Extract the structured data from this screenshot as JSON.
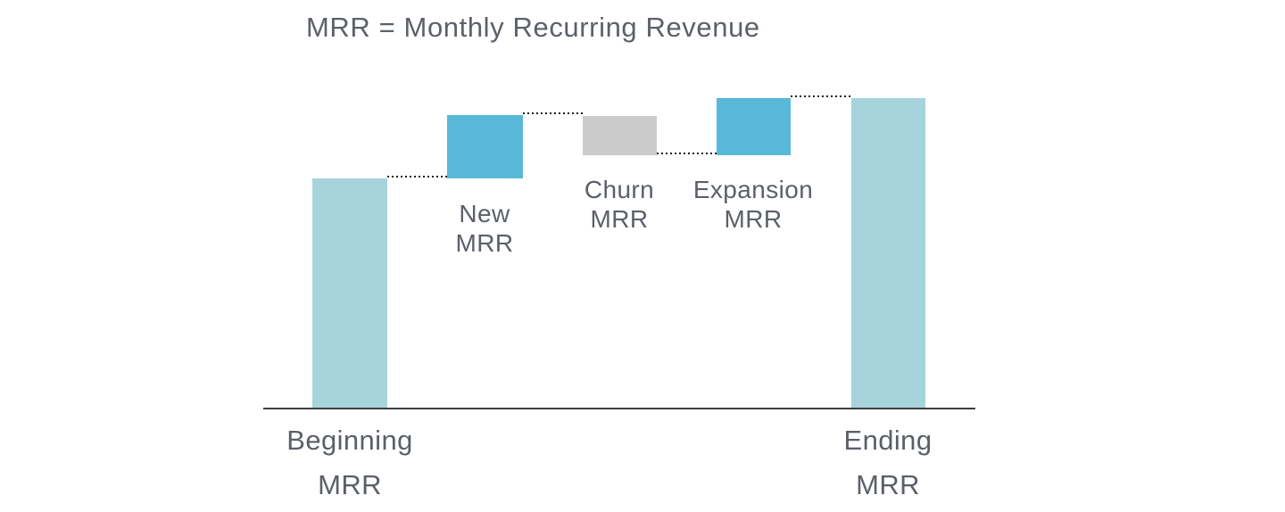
{
  "title": {
    "text": "MRR = Monthly Recurring Revenue"
  },
  "labels": {
    "beginning": "Beginning\nMRR",
    "new": "New\nMRR",
    "churn": "Churn\nMRR",
    "expansion": "Expansion\nMRR",
    "ending": "Ending\nMRR"
  },
  "chart_data": {
    "type": "bar",
    "subtype": "waterfall",
    "title": "MRR = Monthly Recurring Revenue",
    "categories": [
      "Beginning MRR",
      "New MRR",
      "Churn MRR",
      "Expansion MRR",
      "Ending MRR"
    ],
    "series": [
      {
        "name": "MRR",
        "segment_kinds": [
          "total",
          "increase",
          "decrease",
          "increase",
          "total"
        ],
        "relative_values": [
          100,
          27.5,
          -17.4,
          24.8,
          134.9
        ]
      }
    ],
    "value_labels_shown": false,
    "y_axis": "none",
    "x_axis_baseline": true,
    "gridlines": false,
    "legend": "none",
    "connector_style": "dotted",
    "notes": "No numeric scale shown in chart; relative_values estimated from bar heights with Beginning MRR = 100"
  },
  "colors": {
    "bar_total": "#a7d4dc",
    "bar_increase": "#57b8d8",
    "bar_decrease": "#cbcbcb",
    "text": "#5b6068",
    "axis_line": "#3a3e42",
    "connector_dots": "#1f1f1f",
    "background": "#ffffff"
  }
}
